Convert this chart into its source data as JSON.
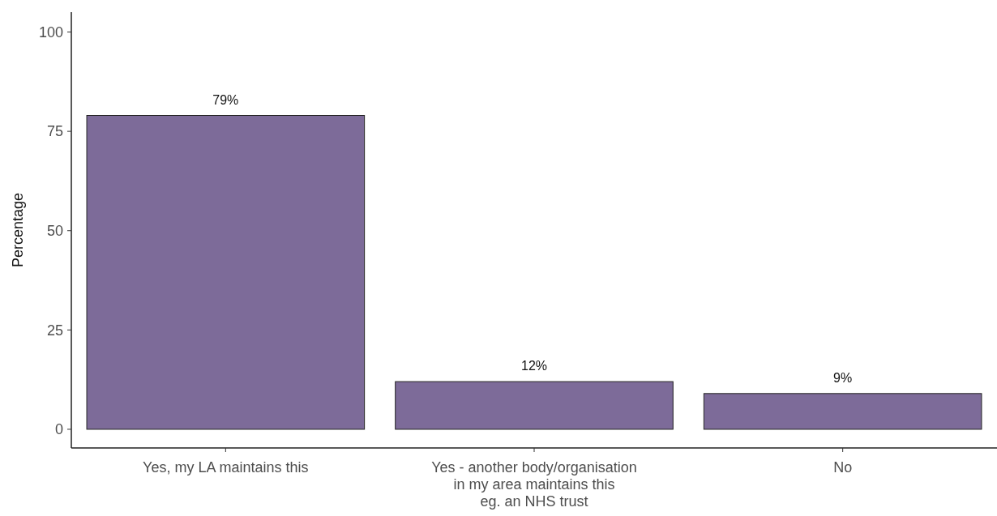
{
  "chart_data": {
    "type": "bar",
    "ylabel": "Percentage",
    "categories": [
      "Yes, my LA maintains this",
      "Yes - another body/organisation\nin my area maintains this\neg. an NHS trust",
      "No"
    ],
    "values": [
      79,
      12,
      9
    ],
    "value_labels": [
      "79%",
      "12%",
      "9%"
    ],
    "color": "#7d6b99",
    "ylim": [
      -4.7,
      105
    ],
    "yticks": [
      0,
      25,
      50,
      75,
      100
    ],
    "grid": false
  }
}
